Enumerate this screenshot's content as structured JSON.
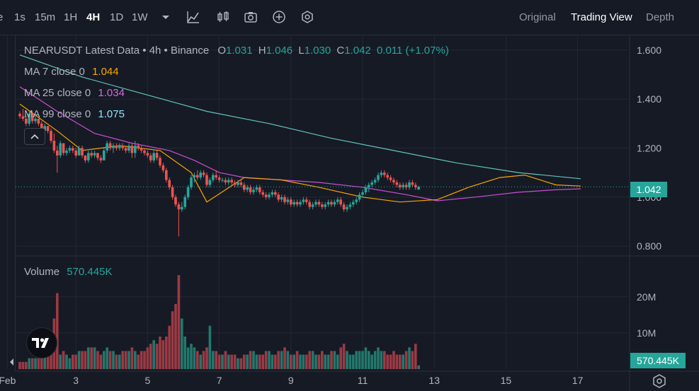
{
  "toolbar": {
    "intervals": [
      {
        "label": "e",
        "active": false
      },
      {
        "label": "1s",
        "active": false
      },
      {
        "label": "15m",
        "active": false
      },
      {
        "label": "1H",
        "active": false
      },
      {
        "label": "4H",
        "active": true
      },
      {
        "label": "1D",
        "active": false
      },
      {
        "label": "1W",
        "active": false
      }
    ],
    "icons": [
      "dropdown-caret-icon",
      "indicator-chart-icon",
      "candlestick-icon",
      "camera-icon",
      "plus-circle-icon",
      "settings-hex-icon"
    ],
    "views": [
      {
        "label": "Original",
        "active": false
      },
      {
        "label": "Trading View",
        "active": true
      },
      {
        "label": "Depth",
        "active": false
      }
    ]
  },
  "legend": {
    "symbol": "NEARUSDT Latest Data • 4h • Binance",
    "o_label": "O",
    "o": "1.031",
    "h_label": "H",
    "h": "1.046",
    "l_label": "L",
    "l": "1.030",
    "c_label": "C",
    "c": "1.042",
    "change": "0.011 (+1.07%)",
    "ma7_label": "MA 7 close 0",
    "ma7": "1.044",
    "ma25_label": "MA 25 close 0",
    "ma25": "1.034",
    "ma99_label": "MA 99 close 0",
    "ma99": "1.075",
    "volume_label": "Volume",
    "volume": "570.445K"
  },
  "colors": {
    "up": "#26a69a",
    "down": "#ef5350",
    "vol_up": "#22786d",
    "vol_down": "#9c3a44",
    "ma7": "#f7a600",
    "ma25": "#c94fd6",
    "ma99": "#5fc4b9",
    "bg": "#161a25"
  },
  "price_badge": "1.042",
  "volume_badge": "570.445K",
  "chart_data": {
    "type": "candlestick",
    "title": "NEARUSDT Latest Data • 4h • Binance",
    "price_axis": {
      "ticks": [
        "1.600",
        "1.400",
        "1.200",
        "1.000",
        "0.800"
      ],
      "tick_values": [
        1.6,
        1.4,
        1.2,
        1.0,
        0.8
      ],
      "range": [
        0.76,
        1.66
      ]
    },
    "volume_axis": {
      "ticks": [
        "20M",
        "10M"
      ],
      "tick_values": [
        20,
        10
      ],
      "range": [
        0,
        27
      ]
    },
    "x_ticks": [
      "Feb",
      "3",
      "5",
      "7",
      "9",
      "11",
      "13",
      "15",
      "17"
    ],
    "x_tick_index": [
      -4,
      18,
      41,
      64,
      87,
      110,
      133,
      156,
      179
    ],
    "last_price": 1.042,
    "ma_lines": {
      "ma7": [
        [
          0,
          1.38
        ],
        [
          12,
          1.27
        ],
        [
          20,
          1.19
        ],
        [
          32,
          1.21
        ],
        [
          45,
          1.19
        ],
        [
          55,
          1.1
        ],
        [
          60,
          0.98
        ],
        [
          66,
          1.03
        ],
        [
          72,
          1.08
        ],
        [
          84,
          1.07
        ],
        [
          96,
          1.04
        ],
        [
          110,
          1.0
        ],
        [
          122,
          0.98
        ],
        [
          134,
          0.99
        ],
        [
          144,
          1.04
        ],
        [
          154,
          1.08
        ],
        [
          162,
          1.09
        ],
        [
          172,
          1.05
        ],
        [
          180,
          1.045
        ]
      ],
      "ma25": [
        [
          0,
          1.45
        ],
        [
          12,
          1.35
        ],
        [
          24,
          1.26
        ],
        [
          36,
          1.22
        ],
        [
          48,
          1.19
        ],
        [
          56,
          1.15
        ],
        [
          64,
          1.1
        ],
        [
          72,
          1.08
        ],
        [
          84,
          1.07
        ],
        [
          96,
          1.06
        ],
        [
          110,
          1.04
        ],
        [
          124,
          1.01
        ],
        [
          134,
          0.985
        ],
        [
          146,
          1.0
        ],
        [
          160,
          1.02
        ],
        [
          172,
          1.03
        ],
        [
          180,
          1.034
        ]
      ],
      "ma99": [
        [
          0,
          1.58
        ],
        [
          20,
          1.49
        ],
        [
          40,
          1.42
        ],
        [
          60,
          1.35
        ],
        [
          80,
          1.3
        ],
        [
          100,
          1.24
        ],
        [
          120,
          1.19
        ],
        [
          140,
          1.14
        ],
        [
          160,
          1.1
        ],
        [
          180,
          1.075
        ]
      ]
    },
    "candles": [
      [
        1.34,
        1.35,
        1.32,
        1.33,
        2
      ],
      [
        1.33,
        1.36,
        1.31,
        1.32,
        2
      ],
      [
        1.32,
        1.33,
        1.29,
        1.3,
        2
      ],
      [
        1.3,
        1.35,
        1.29,
        1.34,
        3
      ],
      [
        1.34,
        1.35,
        1.3,
        1.31,
        3
      ],
      [
        1.31,
        1.33,
        1.3,
        1.32,
        3
      ],
      [
        1.32,
        1.32,
        1.29,
        1.3,
        3
      ],
      [
        1.3,
        1.31,
        1.26,
        1.27,
        4
      ],
      [
        1.27,
        1.3,
        1.25,
        1.29,
        4
      ],
      [
        1.29,
        1.29,
        1.26,
        1.27,
        4
      ],
      [
        1.27,
        1.28,
        1.22,
        1.23,
        7
      ],
      [
        1.23,
        1.26,
        1.18,
        1.19,
        14
      ],
      [
        1.19,
        1.21,
        1.1,
        1.17,
        21
      ],
      [
        1.17,
        1.23,
        1.16,
        1.22,
        4
      ],
      [
        1.22,
        1.22,
        1.17,
        1.18,
        5
      ],
      [
        1.18,
        1.2,
        1.17,
        1.19,
        4
      ],
      [
        1.19,
        1.21,
        1.18,
        1.2,
        3
      ],
      [
        1.2,
        1.21,
        1.18,
        1.19,
        4
      ],
      [
        1.19,
        1.2,
        1.16,
        1.17,
        4
      ],
      [
        1.17,
        1.21,
        1.17,
        1.2,
        5
      ],
      [
        1.2,
        1.21,
        1.16,
        1.17,
        5
      ],
      [
        1.17,
        1.17,
        1.14,
        1.15,
        5
      ],
      [
        1.15,
        1.19,
        1.14,
        1.18,
        6
      ],
      [
        1.18,
        1.19,
        1.16,
        1.17,
        6
      ],
      [
        1.17,
        1.19,
        1.16,
        1.18,
        6
      ],
      [
        1.18,
        1.18,
        1.15,
        1.16,
        5
      ],
      [
        1.16,
        1.17,
        1.14,
        1.15,
        4
      ],
      [
        1.15,
        1.2,
        1.15,
        1.19,
        5
      ],
      [
        1.19,
        1.23,
        1.18,
        1.22,
        6
      ],
      [
        1.22,
        1.23,
        1.19,
        1.2,
        5
      ],
      [
        1.2,
        1.22,
        1.18,
        1.21,
        5
      ],
      [
        1.21,
        1.22,
        1.19,
        1.2,
        4
      ],
      [
        1.2,
        1.22,
        1.19,
        1.21,
        4
      ],
      [
        1.21,
        1.22,
        1.19,
        1.2,
        5
      ],
      [
        1.2,
        1.21,
        1.18,
        1.19,
        5
      ],
      [
        1.19,
        1.22,
        1.18,
        1.21,
        5
      ],
      [
        1.21,
        1.22,
        1.16,
        1.18,
        6
      ],
      [
        1.18,
        1.23,
        1.16,
        1.21,
        5
      ],
      [
        1.21,
        1.22,
        1.19,
        1.2,
        4
      ],
      [
        1.2,
        1.21,
        1.18,
        1.19,
        5
      ],
      [
        1.19,
        1.2,
        1.17,
        1.18,
        5
      ],
      [
        1.18,
        1.19,
        1.16,
        1.17,
        6
      ],
      [
        1.17,
        1.18,
        1.14,
        1.15,
        7
      ],
      [
        1.15,
        1.19,
        1.14,
        1.18,
        8
      ],
      [
        1.18,
        1.19,
        1.15,
        1.16,
        7
      ],
      [
        1.16,
        1.17,
        1.12,
        1.13,
        9
      ],
      [
        1.13,
        1.14,
        1.1,
        1.11,
        8
      ],
      [
        1.11,
        1.12,
        1.06,
        1.07,
        9
      ],
      [
        1.07,
        1.08,
        1.03,
        1.04,
        12
      ],
      [
        1.04,
        1.05,
        0.99,
        1.0,
        16
      ],
      [
        1.0,
        1.01,
        0.96,
        0.97,
        18
      ],
      [
        0.97,
        0.98,
        0.84,
        0.95,
        26
      ],
      [
        0.95,
        0.98,
        0.94,
        0.96,
        14
      ],
      [
        0.96,
        1.01,
        0.95,
        1.0,
        9
      ],
      [
        1.0,
        1.05,
        0.99,
        1.04,
        6
      ],
      [
        1.04,
        1.09,
        1.03,
        1.08,
        7
      ],
      [
        1.08,
        1.1,
        1.06,
        1.09,
        6
      ],
      [
        1.09,
        1.11,
        1.07,
        1.08,
        5
      ],
      [
        1.08,
        1.11,
        1.07,
        1.1,
        4
      ],
      [
        1.1,
        1.11,
        1.08,
        1.09,
        5
      ],
      [
        1.09,
        1.1,
        1.04,
        1.05,
        6
      ],
      [
        1.05,
        1.08,
        1.04,
        1.07,
        12
      ],
      [
        1.07,
        1.1,
        1.06,
        1.09,
        5
      ],
      [
        1.09,
        1.11,
        1.07,
        1.08,
        5
      ],
      [
        1.08,
        1.09,
        1.06,
        1.07,
        4
      ],
      [
        1.07,
        1.08,
        1.06,
        1.07,
        4
      ],
      [
        1.07,
        1.08,
        1.05,
        1.06,
        5
      ],
      [
        1.06,
        1.08,
        1.05,
        1.07,
        4
      ],
      [
        1.07,
        1.08,
        1.05,
        1.06,
        4
      ],
      [
        1.06,
        1.07,
        1.04,
        1.05,
        4
      ],
      [
        1.05,
        1.07,
        1.04,
        1.06,
        3
      ],
      [
        1.06,
        1.07,
        1.04,
        1.05,
        3
      ],
      [
        1.05,
        1.06,
        1.02,
        1.03,
        4
      ],
      [
        1.03,
        1.05,
        1.02,
        1.04,
        4
      ],
      [
        1.04,
        1.05,
        1.01,
        1.02,
        5
      ],
      [
        1.02,
        1.04,
        1.01,
        1.03,
        5
      ],
      [
        1.03,
        1.05,
        1.02,
        1.04,
        4
      ],
      [
        1.04,
        1.05,
        1.01,
        1.02,
        4
      ],
      [
        1.02,
        1.03,
        1.0,
        1.01,
        4
      ],
      [
        1.01,
        1.02,
        0.99,
        1.0,
        5
      ],
      [
        1.0,
        1.02,
        0.99,
        1.01,
        5
      ],
      [
        1.01,
        1.03,
        1.0,
        1.02,
        4
      ],
      [
        1.02,
        1.03,
        1.0,
        1.01,
        4
      ],
      [
        1.01,
        1.02,
        0.98,
        0.99,
        5
      ],
      [
        0.99,
        1.01,
        0.98,
        1.0,
        5
      ],
      [
        1.0,
        1.01,
        0.97,
        0.98,
        6
      ],
      [
        0.98,
        1.0,
        0.97,
        0.99,
        5
      ],
      [
        0.99,
        1.0,
        0.96,
        0.97,
        4
      ],
      [
        0.97,
        0.99,
        0.96,
        0.98,
        4
      ],
      [
        0.98,
        0.99,
        0.96,
        0.97,
        5
      ],
      [
        0.97,
        0.99,
        0.96,
        0.98,
        4
      ],
      [
        0.98,
        1.0,
        0.97,
        0.99,
        4
      ],
      [
        0.99,
        1.0,
        0.97,
        0.98,
        4
      ],
      [
        0.98,
        0.99,
        0.95,
        0.96,
        5
      ],
      [
        0.96,
        0.98,
        0.95,
        0.97,
        5
      ],
      [
        0.97,
        0.99,
        0.96,
        0.98,
        4
      ],
      [
        0.98,
        0.99,
        0.96,
        0.97,
        4
      ],
      [
        0.97,
        0.98,
        0.95,
        0.96,
        5
      ],
      [
        0.96,
        0.98,
        0.95,
        0.97,
        4
      ],
      [
        0.97,
        0.99,
        0.96,
        0.98,
        4
      ],
      [
        0.98,
        0.99,
        0.96,
        0.97,
        5
      ],
      [
        0.97,
        0.99,
        0.96,
        0.98,
        5
      ],
      [
        0.98,
        1.0,
        0.97,
        0.99,
        4
      ],
      [
        0.99,
        1.0,
        0.96,
        0.97,
        6
      ],
      [
        0.97,
        0.98,
        0.94,
        0.95,
        7
      ],
      [
        0.95,
        0.97,
        0.94,
        0.96,
        5
      ],
      [
        0.96,
        0.98,
        0.95,
        0.97,
        4
      ],
      [
        0.97,
        0.99,
        0.96,
        0.98,
        4
      ],
      [
        0.98,
        1.0,
        0.97,
        0.99,
        5
      ],
      [
        0.99,
        1.02,
        0.98,
        1.01,
        5
      ],
      [
        1.01,
        1.03,
        1.0,
        1.02,
        5
      ],
      [
        1.02,
        1.05,
        1.01,
        1.04,
        6
      ],
      [
        1.04,
        1.06,
        1.02,
        1.05,
        5
      ],
      [
        1.05,
        1.07,
        1.04,
        1.06,
        4
      ],
      [
        1.06,
        1.08,
        1.05,
        1.07,
        5
      ],
      [
        1.07,
        1.1,
        1.06,
        1.09,
        6
      ],
      [
        1.09,
        1.11,
        1.08,
        1.1,
        5
      ],
      [
        1.1,
        1.11,
        1.08,
        1.09,
        5
      ],
      [
        1.09,
        1.1,
        1.07,
        1.08,
        4
      ],
      [
        1.08,
        1.09,
        1.06,
        1.07,
        4
      ],
      [
        1.07,
        1.08,
        1.05,
        1.06,
        5
      ],
      [
        1.06,
        1.07,
        1.04,
        1.05,
        4
      ],
      [
        1.05,
        1.06,
        1.03,
        1.04,
        4
      ],
      [
        1.04,
        1.06,
        1.03,
        1.05,
        4
      ],
      [
        1.05,
        1.06,
        1.03,
        1.04,
        5
      ],
      [
        1.04,
        1.07,
        1.03,
        1.06,
        6
      ],
      [
        1.06,
        1.07,
        1.04,
        1.05,
        5
      ],
      [
        1.05,
        1.06,
        1.03,
        1.04,
        7
      ],
      [
        1.031,
        1.046,
        1.03,
        1.042,
        1
      ]
    ]
  }
}
